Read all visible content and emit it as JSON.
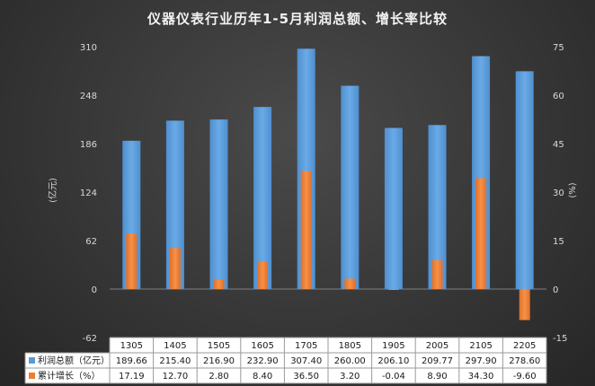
{
  "chart_data": {
    "type": "bar",
    "title": "仪器仪表行业历年1-5月利润总额、增长率比较",
    "categories": [
      "1305",
      "1405",
      "1505",
      "1605",
      "1705",
      "1805",
      "1905",
      "2005",
      "2105",
      "2205"
    ],
    "series": [
      {
        "name": "利润总额（亿元）",
        "axis": "left",
        "color": "#5b9bd5",
        "labels": [
          "189.66",
          "215.40",
          "216.90",
          "232.90",
          "307.40",
          "260.00",
          "206.10",
          "209.77",
          "297.90",
          "278.60"
        ],
        "values": [
          189.66,
          215.4,
          216.9,
          232.9,
          307.4,
          260.0,
          206.1,
          209.77,
          297.9,
          278.6
        ]
      },
      {
        "name": "累计增长（%）",
        "axis": "right",
        "color": "#ed7d31",
        "labels": [
          "17.19",
          "12.70",
          "2.80",
          "8.40",
          "36.50",
          "3.20",
          "-0.04",
          "8.90",
          "34.30",
          "-9.60"
        ],
        "values": [
          17.19,
          12.7,
          2.8,
          8.4,
          36.5,
          3.2,
          -0.04,
          8.9,
          34.3,
          -9.6
        ]
      }
    ],
    "y_left": {
      "label": "(亿元)",
      "ticks": [
        "-62",
        "0",
        "62",
        "124",
        "186",
        "248",
        "310"
      ],
      "range": [
        -62,
        310
      ]
    },
    "y_right": {
      "label": "(%)",
      "ticks": [
        "-15",
        "0",
        "15",
        "30",
        "45",
        "60",
        "75"
      ],
      "range": [
        -15,
        75
      ]
    },
    "grid": false,
    "legend": "data-table"
  }
}
